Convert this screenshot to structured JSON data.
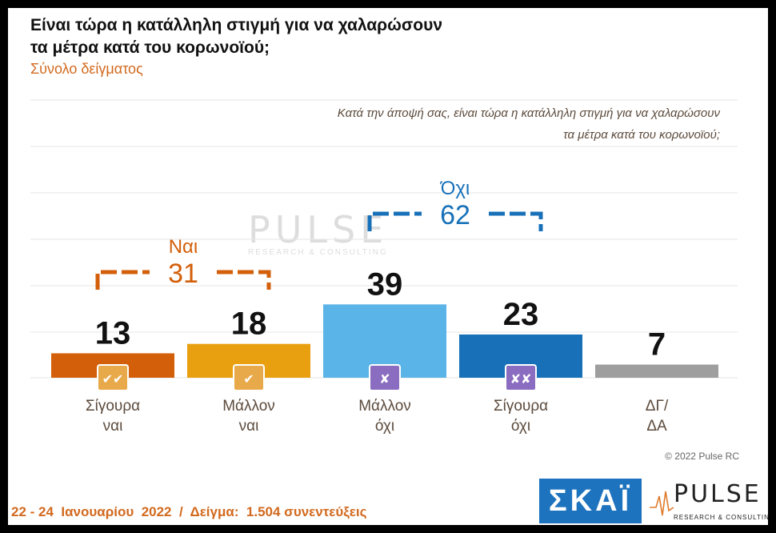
{
  "header": {
    "title_line1": "Είναι τώρα η κατάλληλη στιγμή για να χαλαρώσουν",
    "title_line2": "τα μέτρα κατά του κορωνοϊού;",
    "subtitle": "Σύνολο δείγματος"
  },
  "question": {
    "line1": "Κατά την άποψή σας, είναι τώρα η κατάλληλη στιγμή για να χαλαρώσουν",
    "line2": "τα μέτρα κατά του κορωνοϊού;"
  },
  "watermark": {
    "word": "PULSE",
    "sub": "RESEARCH & CONSULTING"
  },
  "chart_data": {
    "type": "bar",
    "categories": [
      "Σίγουρα ναι",
      "Μάλλον ναι",
      "Μάλλον όχι",
      "Σίγουρα όχι",
      "ΔΓ/ ΔΑ"
    ],
    "category_lines": [
      [
        "Σίγουρα",
        "ναι"
      ],
      [
        "Μάλλον",
        "ναι"
      ],
      [
        "Μάλλον",
        "όχι"
      ],
      [
        "Σίγουρα",
        "όχι"
      ],
      [
        "ΔΓ/",
        "ΔΑ"
      ]
    ],
    "values": [
      13,
      18,
      39,
      23,
      7
    ],
    "colors": [
      "#d35f0a",
      "#e8a010",
      "#5bb4e8",
      "#1871b8",
      "#9e9e9e"
    ],
    "icons": [
      "double-check-icon",
      "check-icon",
      "cross-icon",
      "double-cross-icon",
      ""
    ],
    "icon_glyphs": [
      "✔✔",
      "✔",
      "✘",
      "✘✘",
      ""
    ],
    "ylim": [
      0,
      60
    ],
    "grid": true,
    "groups": [
      {
        "label": "Ναι",
        "value": 31,
        "from": 0,
        "to": 1,
        "color": "#d35f0a"
      },
      {
        "label": "Όχι",
        "value": 62,
        "from": 2,
        "to": 3,
        "color": "#1871b8"
      }
    ]
  },
  "copyright": "© 2022 Pulse RC",
  "footer": "22 - 24  Ιανουαρίου  2022  /  Δείγμα:  1.504 συνεντεύξεις",
  "logos": {
    "skai": "ΣΚΑΪ",
    "pulse_word": "PULSE",
    "pulse_sub": "RESEARCH & CONSULTING"
  }
}
